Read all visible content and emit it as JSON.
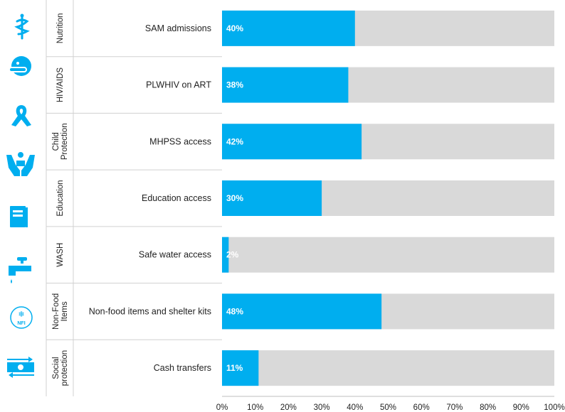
{
  "colors": {
    "accent": "#00aeef",
    "track": "#d9d9d9",
    "text": "#222222"
  },
  "icons": [
    "nutrition-icon",
    "hiv-aids-icon",
    "ribbon-icon",
    "child-protection-icon",
    "education-icon",
    "wash-tap-icon",
    "nfi-icon",
    "cash-transfer-icon"
  ],
  "nfi_icon_text": "NFI",
  "chart_data": {
    "type": "bar",
    "orientation": "horizontal",
    "title": "",
    "xlabel": "",
    "ylabel": "",
    "xlim": [
      0,
      100
    ],
    "x_ticks": [
      "0%",
      "10%",
      "20%",
      "30%",
      "40%",
      "50%",
      "60%",
      "70%",
      "80%",
      "90%",
      "100%"
    ],
    "groups": [
      {
        "sector": [
          "Nutrition"
        ],
        "category": "SAM admissions",
        "value": 40,
        "label": "40%"
      },
      {
        "sector": [
          "HIV/AIDS"
        ],
        "category": "PLWHIV on ART",
        "value": 38,
        "label": "38%"
      },
      {
        "sector": [
          "Child",
          "Protection"
        ],
        "category": "MHPSS access",
        "value": 42,
        "label": "42%"
      },
      {
        "sector": [
          "Education"
        ],
        "category": "Education access",
        "value": 30,
        "label": "30%"
      },
      {
        "sector": [
          "WASH"
        ],
        "category": "Safe water access",
        "value": 2,
        "label": "2%"
      },
      {
        "sector": [
          "Non-Food",
          "Items"
        ],
        "category": "Non-food items and shelter kits",
        "value": 48,
        "label": "48%"
      },
      {
        "sector": [
          "Social",
          "protection"
        ],
        "category": "Cash transfers",
        "value": 11,
        "label": "11%"
      }
    ]
  }
}
